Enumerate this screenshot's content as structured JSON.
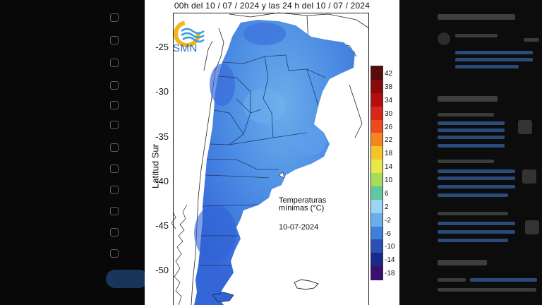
{
  "map": {
    "title": "00h del 10 / 07 / 2024 y las 24 h del 10 / 07 / 2024",
    "y_axis_label": "Latitud Sur",
    "y_ticks": [
      "-25",
      "-30",
      "-35",
      "-40",
      "-45",
      "-50"
    ],
    "logo_text": "SMN",
    "legend_title_line1": "Temperaturas",
    "legend_title_line2": "mínimas (°C)",
    "date": "10-07-2024"
  },
  "colorbar": {
    "labels": [
      "42",
      "38",
      "34",
      "30",
      "26",
      "22",
      "18",
      "14",
      "10",
      "6",
      "2",
      "-2",
      "-6",
      "-10",
      "-14",
      "-18"
    ],
    "colors": [
      "#5a0a0a",
      "#8a0a0a",
      "#b40f0f",
      "#d8261a",
      "#ef4a1e",
      "#f6861f",
      "#f5c42a",
      "#e8e84a",
      "#a6dc5a",
      "#5fc8a0",
      "#9cd4f4",
      "#6aaeea",
      "#3f7fdc",
      "#2850b8",
      "#1a2a8a",
      "#3a1070"
    ]
  }
}
